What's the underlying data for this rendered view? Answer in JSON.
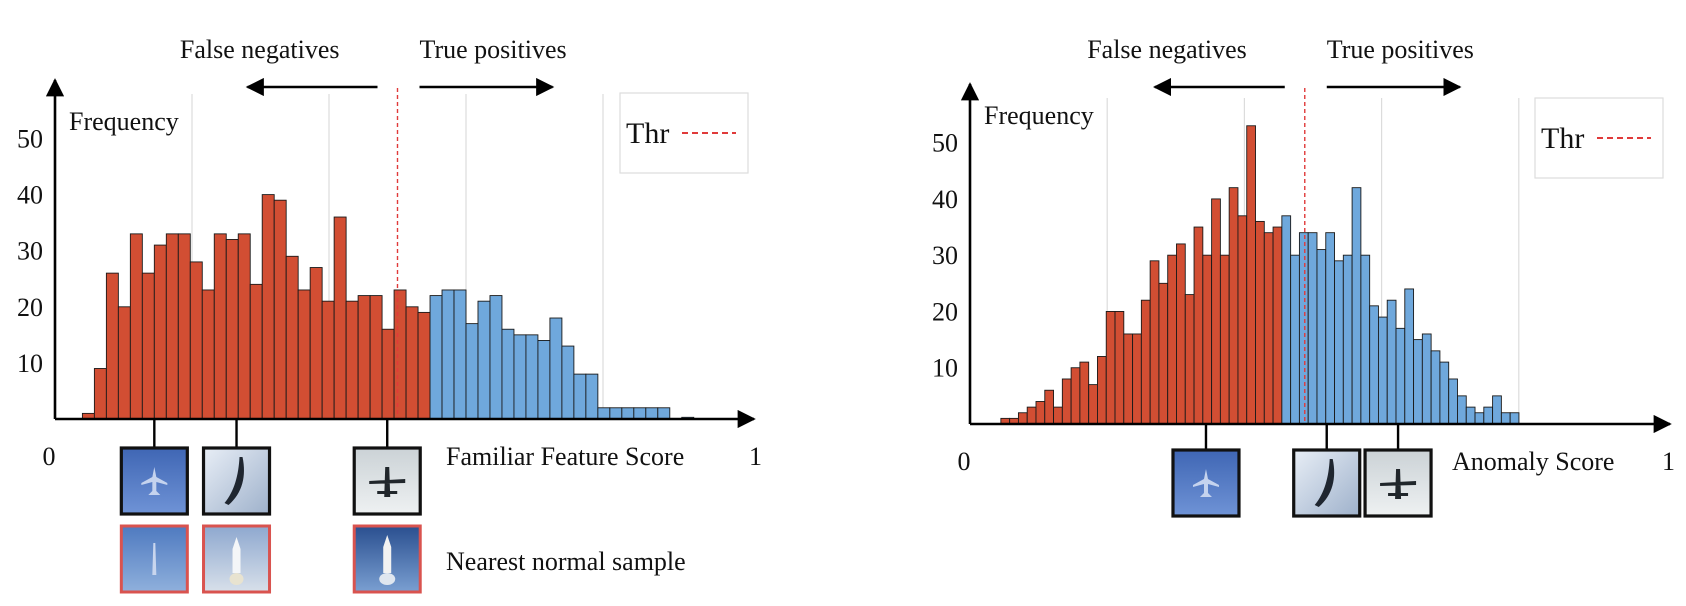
{
  "colors": {
    "below_threshold": "#d24e33",
    "above_threshold": "#6fa8dc",
    "threshold_line": "#e03a3a",
    "gridline": "#dcdcdc",
    "axis": "#000000",
    "thumb_frame_query": "#111111",
    "thumb_frame_nearest": "#d9534f"
  },
  "common": {
    "false_negatives_label": "False negatives",
    "true_positives_label": "True positives",
    "ylabel": "Frequency",
    "legend_label": "Thr",
    "x_min_label": "0",
    "x_max_label": "1"
  },
  "chart_data": [
    {
      "type": "bar",
      "title": "",
      "xlabel": "Familiar Feature Score",
      "ylabel": "Frequency",
      "xlim": [
        0,
        1
      ],
      "ylim": [
        0,
        59
      ],
      "y_ticks": [
        10,
        20,
        30,
        40,
        50
      ],
      "bin_start": 0.04,
      "bin_width": 0.0175,
      "threshold": 0.5,
      "series": [
        {
          "name": "False negatives",
          "values": [
            1,
            9,
            26,
            20,
            33,
            26,
            31,
            33,
            33,
            28,
            23,
            33,
            32,
            33,
            24,
            40,
            39,
            29,
            23,
            27,
            21,
            36,
            21,
            22,
            22,
            16,
            23,
            20,
            19
          ]
        },
        {
          "name": "True positives",
          "values": [
            22,
            23,
            23,
            17,
            21,
            22,
            16,
            15,
            15,
            14,
            18,
            13,
            8,
            8,
            2,
            2,
            2,
            2,
            2,
            2,
            0,
            0.3
          ]
        }
      ],
      "thumbnail_caption": "Nearest normal sample",
      "thumbnails": [
        {
          "kind": "airplane",
          "score": 0.145
        },
        {
          "kind": "jet-vertical",
          "score": 0.265
        },
        {
          "kind": "jet-dark",
          "score": 0.485
        }
      ],
      "nearest_thumbnails": [
        {
          "kind": "faint-jet"
        },
        {
          "kind": "rocket-light"
        },
        {
          "kind": "rocket-dark"
        }
      ]
    },
    {
      "type": "bar",
      "title": "",
      "xlabel": "Anomaly Score",
      "ylabel": "Frequency",
      "xlim": [
        0,
        1
      ],
      "ylim": [
        0,
        59
      ],
      "y_ticks": [
        10,
        20,
        30,
        40,
        50
      ],
      "bin_start": 0.045,
      "bin_width": 0.0128,
      "threshold": 0.488,
      "series": [
        {
          "name": "False negatives",
          "values": [
            1,
            1,
            2,
            3,
            4,
            6,
            3,
            8,
            10,
            11,
            7,
            12,
            20,
            20,
            16,
            16,
            22,
            29,
            25,
            30,
            32,
            23,
            35,
            30,
            40,
            30,
            42,
            37,
            53,
            36,
            34,
            35
          ]
        },
        {
          "name": "True positives",
          "values": [
            37,
            30,
            34,
            34,
            31,
            34,
            29,
            30,
            42,
            30,
            21,
            19,
            22,
            17,
            24,
            15,
            16,
            13,
            11,
            8,
            5,
            3,
            2,
            3,
            5,
            2,
            2
          ]
        }
      ],
      "thumbnails": [
        {
          "kind": "airplane",
          "score": 0.344
        },
        {
          "kind": "jet-vertical",
          "score": 0.52
        },
        {
          "kind": "jet-dark",
          "score": 0.624
        }
      ]
    }
  ]
}
